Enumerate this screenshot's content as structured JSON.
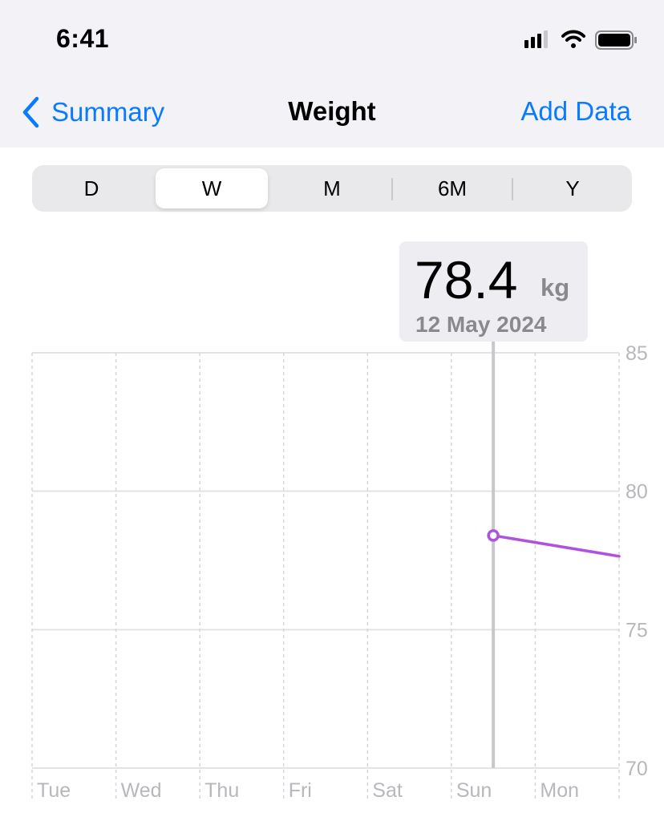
{
  "status_bar": {
    "time": "6:41"
  },
  "nav": {
    "back_label": "Summary",
    "title": "Weight",
    "action_label": "Add Data"
  },
  "segments": {
    "items": [
      "D",
      "W",
      "M",
      "6M",
      "Y"
    ],
    "selected": "W"
  },
  "selection": {
    "value": "78.4",
    "unit": "kg",
    "date": "12 May 2024"
  },
  "colors": {
    "accent": "#0a7aff",
    "series": "#af52de"
  },
  "chart_data": {
    "type": "line",
    "categories": [
      "Tue",
      "Wed",
      "Thu",
      "Fri",
      "Sat",
      "Sun",
      "Mon"
    ],
    "y_ticks": [
      "85",
      "80",
      "75",
      "70"
    ],
    "ylim": [
      70,
      85
    ],
    "grid": true,
    "series": [
      {
        "points": [
          {
            "x": "Sun",
            "y": 78.4
          },
          {
            "x": "Mon",
            "y": 77.9
          }
        ]
      }
    ],
    "selected_point": {
      "x": "Sun",
      "y": 78.4
    }
  }
}
